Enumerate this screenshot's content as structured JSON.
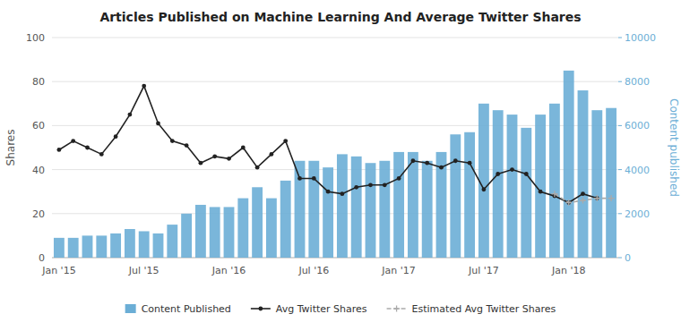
{
  "chart_data": {
    "type": "bar",
    "title": "Articles Published on Machine Learning And Average Twitter Shares",
    "ylabel": "Shares",
    "y2label": "Content published",
    "categories": [
      "Jan '15",
      null,
      null,
      null,
      null,
      null,
      "Jul '15",
      null,
      null,
      null,
      null,
      null,
      "Jan '16",
      null,
      null,
      null,
      null,
      null,
      "Jul '16",
      null,
      null,
      null,
      null,
      null,
      "Jan '17",
      null,
      null,
      null,
      null,
      null,
      "Jul '17",
      null,
      null,
      null,
      null,
      null,
      "Jan '18",
      null,
      null,
      null
    ],
    "ylim": [
      0,
      100
    ],
    "yticks": [
      0,
      20,
      40,
      60,
      80,
      100
    ],
    "y2lim": [
      0,
      10000
    ],
    "y2ticks": [
      0,
      2000,
      4000,
      6000,
      8000,
      10000
    ],
    "grid": true,
    "legend": "bottom",
    "series": [
      {
        "name": "Content Published",
        "type": "bar",
        "axis": "y2",
        "color": "#6baed6",
        "values": [
          900,
          900,
          1000,
          1000,
          1100,
          1300,
          1200,
          1100,
          1500,
          2000,
          2400,
          2300,
          2300,
          2700,
          3200,
          2700,
          3500,
          4400,
          4400,
          4100,
          4700,
          4600,
          4300,
          4400,
          4800,
          4800,
          4400,
          4800,
          5600,
          5700,
          7000,
          6700,
          6500,
          5900,
          6500,
          7000,
          8500,
          7600,
          6700,
          6800
        ]
      },
      {
        "name": "Avg Twitter Shares",
        "type": "line",
        "color": "#222222",
        "marker": "circle",
        "line_style": "solid",
        "values": [
          49,
          53,
          50,
          47,
          55,
          65,
          78,
          61,
          53,
          51,
          43,
          46,
          45,
          50,
          41,
          47,
          53,
          36,
          36,
          30,
          29,
          32,
          33,
          33,
          36,
          44,
          43,
          41,
          44,
          43,
          31,
          38,
          40,
          38,
          30,
          28,
          25,
          29,
          27,
          null
        ]
      },
      {
        "name": "Estimated Avg Twitter Shares",
        "type": "line",
        "color": "#aaaaaa",
        "marker": "plus",
        "line_style": "dashed",
        "values": [
          null,
          null,
          null,
          null,
          null,
          null,
          null,
          null,
          null,
          null,
          null,
          null,
          null,
          null,
          null,
          null,
          null,
          null,
          null,
          null,
          null,
          null,
          null,
          null,
          null,
          null,
          null,
          null,
          null,
          null,
          null,
          null,
          null,
          null,
          null,
          29,
          25,
          26,
          27,
          27
        ]
      }
    ]
  }
}
